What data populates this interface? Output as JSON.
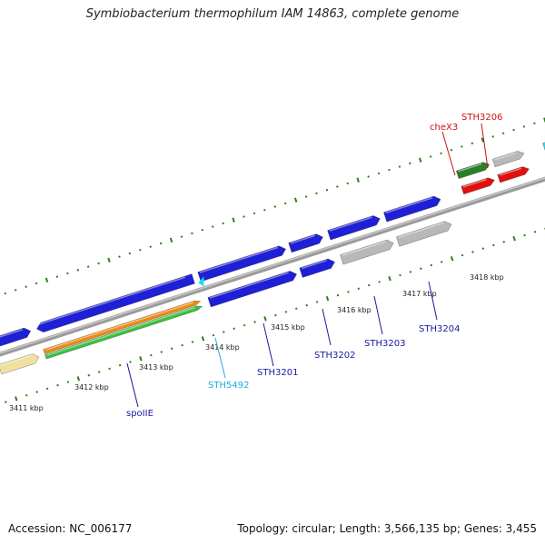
{
  "title": "Symbiobacterium thermophilum IAM 14863, complete genome",
  "footer": {
    "accession": "Accession: NC_006177",
    "summary": "Topology: circular; Length: 3,566,135 bp; Genes: 3,455"
  },
  "colors": {
    "backbone": "#8a8a8a",
    "tick": "#2f7d1e",
    "cds_blue": "#1f1fd6",
    "cds_gray": "#b8b8b8",
    "cds_red": "#e01010",
    "cds_darkgreen": "#2a7f2a",
    "cds_cyan": "#20d8f0",
    "cds_yellow": "#f0e0a0",
    "cds_orange": "#f08a10",
    "cds_green": "#40c040",
    "label_blue": "#1a1aa0",
    "label_red": "#cc1010",
    "label_cyan": "#22aadd"
  },
  "scale_labels": [
    "3411 kbp",
    "3412 kbp",
    "3413 kbp",
    "3414 kbp",
    "3415 kbp",
    "3416 kbp",
    "3417 kbp",
    "3418 kbp"
  ],
  "gene_labels": [
    {
      "id": "spoIIE",
      "text": "spoIIE",
      "color": "label_blue"
    },
    {
      "id": "STH5492",
      "text": "STH5492",
      "color": "label_cyan"
    },
    {
      "id": "STH3201",
      "text": "STH3201",
      "color": "label_blue"
    },
    {
      "id": "STH3202",
      "text": "STH3202",
      "color": "label_blue"
    },
    {
      "id": "STH3203",
      "text": "STH3203",
      "color": "label_blue"
    },
    {
      "id": "STH3204",
      "text": "STH3204",
      "color": "label_blue"
    },
    {
      "id": "cheX3",
      "text": "cheX3",
      "color": "label_red"
    },
    {
      "id": "STH3206",
      "text": "STH3206",
      "color": "label_red"
    }
  ]
}
